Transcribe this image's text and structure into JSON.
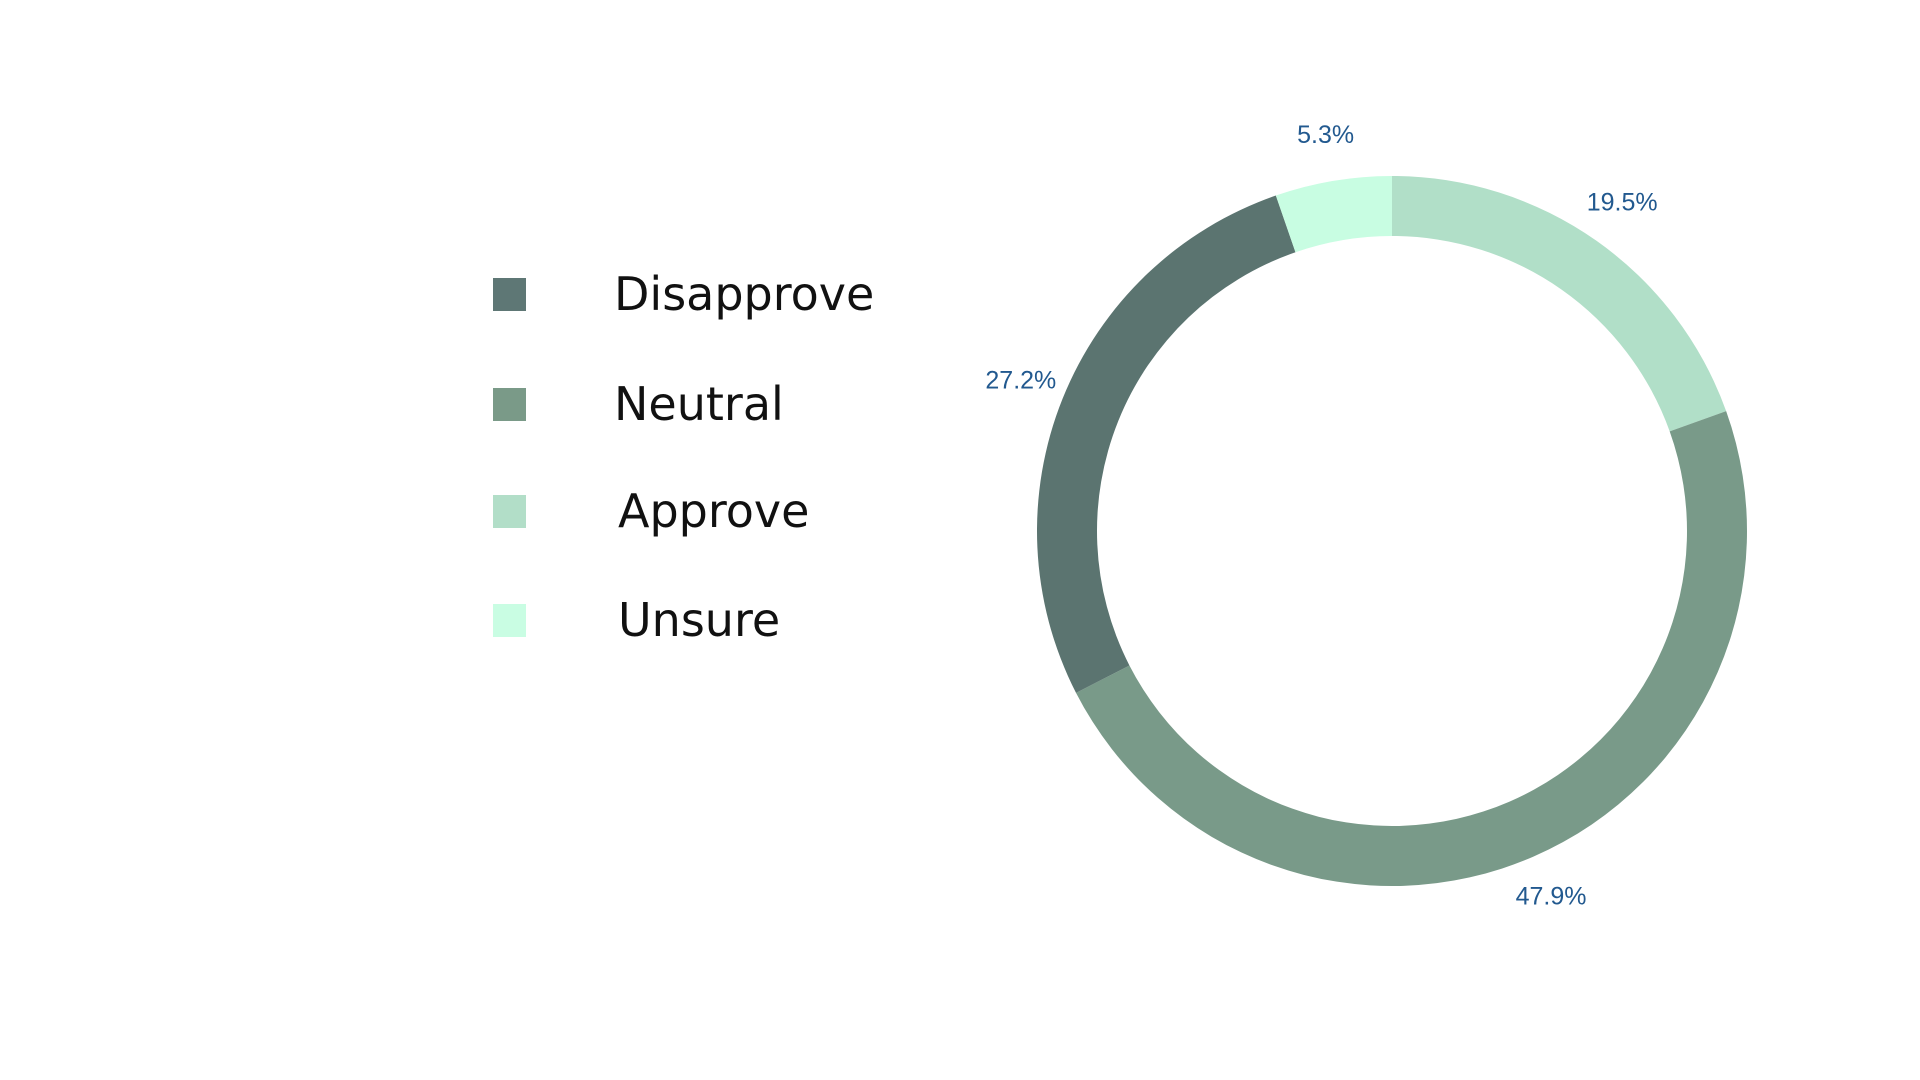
{
  "chart_data": {
    "type": "pie",
    "variant": "donut",
    "title": "",
    "legend_position": "left",
    "categories": [
      "Disapprove",
      "Neutral",
      "Approve",
      "Unsure"
    ],
    "values": [
      27.2,
      47.9,
      19.5,
      5.3
    ],
    "labels": [
      "27.2%",
      "47.9%",
      "19.5%",
      "5.3%"
    ],
    "colors": [
      "#5b7470",
      "#799a89",
      "#b1dfc8",
      "#c8fde2"
    ],
    "legend_colors": [
      "#5e7775",
      "#7a9a88",
      "#b2dec8",
      "#c9fde3"
    ],
    "start_angle_deg": 0,
    "direction": "clockwise",
    "slice_order": [
      "Approve",
      "Neutral",
      "Disapprove",
      "Unsure"
    ]
  }
}
